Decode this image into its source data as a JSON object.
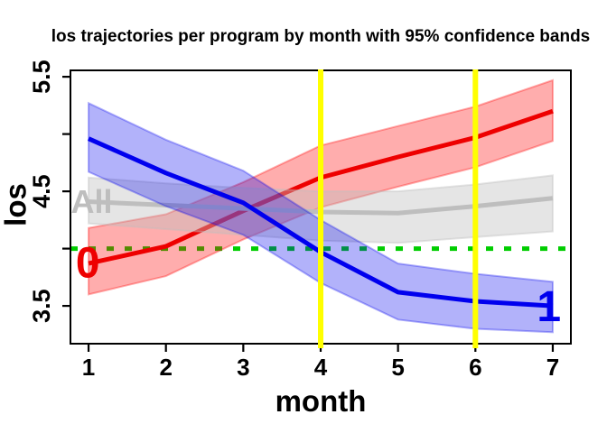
{
  "title": "los trajectories per program by month with 95% confidence bands",
  "chart_data": {
    "type": "line",
    "title": "los trajectories per program by month with 95% confidence bands",
    "xlabel": "month",
    "ylabel": "los",
    "xlim": [
      0.766,
      7.234
    ],
    "ylim": [
      3.17,
      5.556
    ],
    "xticks": [
      1,
      2,
      3,
      4,
      5,
      6,
      7
    ],
    "xtick_labels": [
      "1",
      "2",
      "3",
      "4",
      "5",
      "6",
      "7"
    ],
    "yticks": [
      3.5,
      4.0,
      4.5,
      5.0,
      5.5
    ],
    "ytick_labels": [
      "3.5",
      "",
      "4.5",
      "",
      "5.5"
    ],
    "grid": false,
    "legend": "none",
    "x": [
      1,
      2,
      3,
      4,
      5,
      6,
      7
    ],
    "series": [
      {
        "name": "program-0",
        "label": "0",
        "color": "#EE0000",
        "band_color": "rgba(255,0,0,0.32)",
        "values": [
          3.87,
          4.02,
          4.33,
          4.62,
          4.8,
          4.97,
          5.2
        ],
        "upper": [
          4.18,
          4.3,
          4.58,
          4.9,
          5.07,
          5.24,
          5.47
        ],
        "lower": [
          3.6,
          3.76,
          4.08,
          4.36,
          4.54,
          4.71,
          4.94
        ],
        "label_x": 0.99,
        "label_y": 3.87,
        "label_size": 48
      },
      {
        "name": "all",
        "label": "All",
        "color": "#BEBEBE",
        "band_color": "rgba(190,190,190,0.40)",
        "values": [
          4.41,
          4.38,
          4.35,
          4.32,
          4.31,
          4.37,
          4.44
        ],
        "upper": [
          4.62,
          4.57,
          4.53,
          4.5,
          4.5,
          4.56,
          4.64
        ],
        "lower": [
          4.22,
          4.17,
          4.12,
          4.07,
          4.05,
          4.1,
          4.15
        ],
        "label_x": 1.04,
        "label_y": 4.41,
        "label_size": 36
      },
      {
        "name": "program-1",
        "label": "1",
        "color": "#0000EE",
        "band_color": "rgba(0,0,238,0.30)",
        "values": [
          4.96,
          4.66,
          4.4,
          3.97,
          3.62,
          3.54,
          3.5
        ],
        "upper": [
          5.27,
          4.95,
          4.68,
          4.25,
          3.87,
          3.78,
          3.71
        ],
        "lower": [
          4.67,
          4.37,
          4.12,
          3.7,
          3.38,
          3.3,
          3.27
        ],
        "label_x": 6.95,
        "label_y": 3.49,
        "label_size": 48
      }
    ],
    "reference_lines": {
      "horizontal": [
        {
          "y": 4.0,
          "color": "#00CD00",
          "style": "dashed"
        }
      ],
      "vertical": [
        {
          "x": 4,
          "color": "#FFFF00"
        },
        {
          "x": 6,
          "color": "#FFFF00"
        }
      ]
    }
  }
}
